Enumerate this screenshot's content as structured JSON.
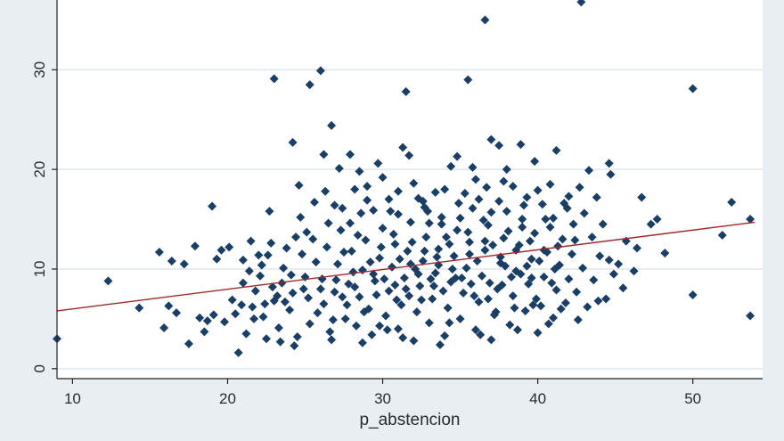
{
  "chart_data": {
    "type": "scatter",
    "xlabel": "p_abstencion",
    "ylabel": "",
    "xlim": [
      9,
      54.5
    ],
    "ylim": [
      -1,
      37
    ],
    "xticks": [
      "10",
      "20",
      "30",
      "40",
      "50"
    ],
    "yticks": [
      "0",
      "10",
      "20",
      "30"
    ],
    "grid": true,
    "legend": "none",
    "colors": {
      "page_bg": "#e8eef2",
      "plot_bg": "#ffffff",
      "gridline": "#dde6ec",
      "point": "#1a3f66",
      "fit_line": "#a02828",
      "axis": "#222222"
    },
    "fit_line": {
      "x": [
        9,
        54
      ],
      "y": [
        5.8,
        14.7
      ]
    },
    "points": [
      [
        9.0,
        3.0
      ],
      [
        12.3,
        8.8
      ],
      [
        14.3,
        6.1
      ],
      [
        15.6,
        11.7
      ],
      [
        15.9,
        4.1
      ],
      [
        16.2,
        6.3
      ],
      [
        16.4,
        10.8
      ],
      [
        16.7,
        5.6
      ],
      [
        17.2,
        10.5
      ],
      [
        17.5,
        2.5
      ],
      [
        17.9,
        12.3
      ],
      [
        18.2,
        5.1
      ],
      [
        18.7,
        4.8
      ],
      [
        19.0,
        16.3
      ],
      [
        19.3,
        11.0
      ],
      [
        19.6,
        11.9
      ],
      [
        20.1,
        12.2
      ],
      [
        20.3,
        6.9
      ],
      [
        20.7,
        1.6
      ],
      [
        21.0,
        10.9
      ],
      [
        21.5,
        12.8
      ],
      [
        22.0,
        11.4
      ],
      [
        22.6,
        11.4
      ],
      [
        22.7,
        15.8
      ],
      [
        23.0,
        29.1
      ],
      [
        23.4,
        2.7
      ],
      [
        23.8,
        12.1
      ],
      [
        24.2,
        22.7
      ],
      [
        24.6,
        18.4
      ],
      [
        25.3,
        28.5
      ],
      [
        25.6,
        16.7
      ],
      [
        26.0,
        29.9
      ],
      [
        26.2,
        21.5
      ],
      [
        26.7,
        24.4
      ],
      [
        27.2,
        20.1
      ],
      [
        27.4,
        16.1
      ],
      [
        27.9,
        21.5
      ],
      [
        28.2,
        18.0
      ],
      [
        28.6,
        15.6
      ],
      [
        29.0,
        18.3
      ],
      [
        29.4,
        15.9
      ],
      [
        29.7,
        20.6
      ],
      [
        30.5,
        15.8
      ],
      [
        31.0,
        17.8
      ],
      [
        31.3,
        22.2
      ],
      [
        31.5,
        27.8
      ],
      [
        31.7,
        21.4
      ],
      [
        32.3,
        17.1
      ],
      [
        32.7,
        16.2
      ],
      [
        33.4,
        17.7
      ],
      [
        33.8,
        14.5
      ],
      [
        34.4,
        20.3
      ],
      [
        34.8,
        21.3
      ],
      [
        35.5,
        29.0
      ],
      [
        35.8,
        20.2
      ],
      [
        36.2,
        17.0
      ],
      [
        36.6,
        35.0
      ],
      [
        37.0,
        23.0
      ],
      [
        37.5,
        22.4
      ],
      [
        37.8,
        18.8
      ],
      [
        38.4,
        18.3
      ],
      [
        38.9,
        22.5
      ],
      [
        39.3,
        17.2
      ],
      [
        39.8,
        20.8
      ],
      [
        40.3,
        16.5
      ],
      [
        40.8,
        18.5
      ],
      [
        41.2,
        21.9
      ],
      [
        41.7,
        16.6
      ],
      [
        42.3,
        14.5
      ],
      [
        42.7,
        18.2
      ],
      [
        42.8,
        36.8
      ],
      [
        43.3,
        19.9
      ],
      [
        43.8,
        17.2
      ],
      [
        44.6,
        20.6
      ],
      [
        44.2,
        14.5
      ],
      [
        44.7,
        19.5
      ],
      [
        45.2,
        10.5
      ],
      [
        45.7,
        12.8
      ],
      [
        46.2,
        9.8
      ],
      [
        46.7,
        17.2
      ],
      [
        47.3,
        14.5
      ],
      [
        47.7,
        15.0
      ],
      [
        48.2,
        11.6
      ],
      [
        50.0,
        28.1
      ],
      [
        50.0,
        7.4
      ],
      [
        51.9,
        13.4
      ],
      [
        52.5,
        16.7
      ],
      [
        53.7,
        15.0
      ],
      [
        53.7,
        5.3
      ],
      [
        21.2,
        3.5
      ],
      [
        21.8,
        7.8
      ],
      [
        22.3,
        5.2
      ],
      [
        22.9,
        8.2
      ],
      [
        23.3,
        4.1
      ],
      [
        23.7,
        6.7
      ],
      [
        24.1,
        9.4
      ],
      [
        24.5,
        3.2
      ],
      [
        24.8,
        11.5
      ],
      [
        25.2,
        7.1
      ],
      [
        25.5,
        13.0
      ],
      [
        25.8,
        5.6
      ],
      [
        26.1,
        9.0
      ],
      [
        26.4,
        12.2
      ],
      [
        26.6,
        3.7
      ],
      [
        26.9,
        7.7
      ],
      [
        27.1,
        10.5
      ],
      [
        27.3,
        13.9
      ],
      [
        27.6,
        5.0
      ],
      [
        27.8,
        8.5
      ],
      [
        28.0,
        11.8
      ],
      [
        28.3,
        4.3
      ],
      [
        28.5,
        7.2
      ],
      [
        28.7,
        9.9
      ],
      [
        28.9,
        12.9
      ],
      [
        29.1,
        6.0
      ],
      [
        29.3,
        3.4
      ],
      [
        29.5,
        8.8
      ],
      [
        29.8,
        11.1
      ],
      [
        30.0,
        14.1
      ],
      [
        30.2,
        5.3
      ],
      [
        30.4,
        7.8
      ],
      [
        30.6,
        10.2
      ],
      [
        30.8,
        12.5
      ],
      [
        31.0,
        4.0
      ],
      [
        31.2,
        6.4
      ],
      [
        31.4,
        9.1
      ],
      [
        31.6,
        11.8
      ],
      [
        31.8,
        14.7
      ],
      [
        32.0,
        2.8
      ],
      [
        32.2,
        5.7
      ],
      [
        32.4,
        8.3
      ],
      [
        32.6,
        10.8
      ],
      [
        32.8,
        13.2
      ],
      [
        33.0,
        4.6
      ],
      [
        33.2,
        7.0
      ],
      [
        33.4,
        9.6
      ],
      [
        33.6,
        12.0
      ],
      [
        33.8,
        15.2
      ],
      [
        34.0,
        3.3
      ],
      [
        34.2,
        6.1
      ],
      [
        34.4,
        8.7
      ],
      [
        34.6,
        11.3
      ],
      [
        34.8,
        13.9
      ],
      [
        35.0,
        5.0
      ],
      [
        35.2,
        7.6
      ],
      [
        35.4,
        10.1
      ],
      [
        35.6,
        12.7
      ],
      [
        35.8,
        16.1
      ],
      [
        36.0,
        3.9
      ],
      [
        36.2,
        6.7
      ],
      [
        36.4,
        9.3
      ],
      [
        36.6,
        11.9
      ],
      [
        36.8,
        14.4
      ],
      [
        37.0,
        2.9
      ],
      [
        37.2,
        5.4
      ],
      [
        37.4,
        8.0
      ],
      [
        37.6,
        10.6
      ],
      [
        37.8,
        13.1
      ],
      [
        38.0,
        15.8
      ],
      [
        38.2,
        4.4
      ],
      [
        38.4,
        7.3
      ],
      [
        38.6,
        9.8
      ],
      [
        38.8,
        12.4
      ],
      [
        39.0,
        15.0
      ],
      [
        39.2,
        5.8
      ],
      [
        39.4,
        8.5
      ],
      [
        39.6,
        11.0
      ],
      [
        39.8,
        13.6
      ],
      [
        40.0,
        3.6
      ],
      [
        40.2,
        6.3
      ],
      [
        40.4,
        9.2
      ],
      [
        40.6,
        11.7
      ],
      [
        40.8,
        14.2
      ],
      [
        41.0,
        5.1
      ],
      [
        41.2,
        7.9
      ],
      [
        41.4,
        10.4
      ],
      [
        41.6,
        13.0
      ],
      [
        41.8,
        6.6
      ],
      [
        42.0,
        9.0
      ],
      [
        42.2,
        11.5
      ],
      [
        42.5,
        7.7
      ],
      [
        42.9,
        10.1
      ],
      [
        43.2,
        6.2
      ],
      [
        43.6,
        8.9
      ],
      [
        44.0,
        11.3
      ],
      [
        44.4,
        7.0
      ],
      [
        44.9,
        9.5
      ],
      [
        20.5,
        5.5
      ],
      [
        21.0,
        8.6
      ],
      [
        21.6,
        6.2
      ],
      [
        22.1,
        9.3
      ],
      [
        22.5,
        3.0
      ],
      [
        23.0,
        6.8
      ],
      [
        23.6,
        10.1
      ],
      [
        24.0,
        5.9
      ],
      [
        24.4,
        13.2
      ],
      [
        24.9,
        8.0
      ],
      [
        25.3,
        4.5
      ],
      [
        25.7,
        10.7
      ],
      [
        26.2,
        6.5
      ],
      [
        26.5,
        14.6
      ],
      [
        26.8,
        4.9
      ],
      [
        27.0,
        8.9
      ],
      [
        27.5,
        11.7
      ],
      [
        27.7,
        6.4
      ],
      [
        28.1,
        9.7
      ],
      [
        28.4,
        13.4
      ],
      [
        28.8,
        5.7
      ],
      [
        29.2,
        10.7
      ],
      [
        29.6,
        7.4
      ],
      [
        29.9,
        12.2
      ],
      [
        30.1,
        9.0
      ],
      [
        30.3,
        3.9
      ],
      [
        30.7,
        13.5
      ],
      [
        30.9,
        6.9
      ],
      [
        31.1,
        11.0
      ],
      [
        31.5,
        8.0
      ],
      [
        31.9,
        12.7
      ],
      [
        32.1,
        10.0
      ],
      [
        32.5,
        6.9
      ],
      [
        32.9,
        15.8
      ],
      [
        33.1,
        9.0
      ],
      [
        33.5,
        11.2
      ],
      [
        33.9,
        7.8
      ],
      [
        34.1,
        13.2
      ],
      [
        34.5,
        10.0
      ],
      [
        34.9,
        16.6
      ],
      [
        35.1,
        9.1
      ],
      [
        35.5,
        13.7
      ],
      [
        35.9,
        7.3
      ],
      [
        36.1,
        10.8
      ],
      [
        36.5,
        14.9
      ],
      [
        36.9,
        8.6
      ],
      [
        37.1,
        12.4
      ],
      [
        37.5,
        16.8
      ],
      [
        37.9,
        10.3
      ],
      [
        38.1,
        13.8
      ],
      [
        38.5,
        6.1
      ],
      [
        38.9,
        9.5
      ],
      [
        39.1,
        16.4
      ],
      [
        39.5,
        12.8
      ],
      [
        39.9,
        7.0
      ],
      [
        40.1,
        10.8
      ],
      [
        40.5,
        15.0
      ],
      [
        40.9,
        8.6
      ],
      [
        41.3,
        12.3
      ],
      [
        41.9,
        16.1
      ],
      [
        42.4,
        12.9
      ],
      [
        43.0,
        15.6
      ],
      [
        43.5,
        13.2
      ],
      [
        21.4,
        9.8
      ],
      [
        22.8,
        12.6
      ],
      [
        24.7,
        15.2
      ],
      [
        26.3,
        17.8
      ],
      [
        27.9,
        14.6
      ],
      [
        29.0,
        16.9
      ],
      [
        30.0,
        19.2
      ],
      [
        31.0,
        15.5
      ],
      [
        32.0,
        18.6
      ],
      [
        33.0,
        14.6
      ],
      [
        34.0,
        18.0
      ],
      [
        35.0,
        15.1
      ],
      [
        36.0,
        19.0
      ],
      [
        37.0,
        15.7
      ],
      [
        38.0,
        20.0
      ],
      [
        39.0,
        14.2
      ],
      [
        40.0,
        17.9
      ],
      [
        41.0,
        15.1
      ],
      [
        42.0,
        17.3
      ],
      [
        35.3,
        17.6
      ],
      [
        36.7,
        18.2
      ],
      [
        32.6,
        16.8
      ],
      [
        30.4,
        17.0
      ],
      [
        28.5,
        19.8
      ],
      [
        26.9,
        16.4
      ],
      [
        25.1,
        13.7
      ],
      [
        23.5,
        8.6
      ],
      [
        22.2,
        10.4
      ],
      [
        20.9,
        6.4
      ],
      [
        19.8,
        4.7
      ],
      [
        19.1,
        5.4
      ],
      [
        18.5,
        3.7
      ],
      [
        28.7,
        2.6
      ],
      [
        31.3,
        3.1
      ],
      [
        33.7,
        2.4
      ],
      [
        36.3,
        3.4
      ],
      [
        38.7,
        3.9
      ],
      [
        40.7,
        4.5
      ],
      [
        42.6,
        4.9
      ],
      [
        24.3,
        2.3
      ],
      [
        26.7,
        2.9
      ],
      [
        29.8,
        4.3
      ],
      [
        34.3,
        4.6
      ],
      [
        37.3,
        5.7
      ],
      [
        39.7,
        6.4
      ],
      [
        41.5,
        6.0
      ],
      [
        43.9,
        6.8
      ],
      [
        45.5,
        8.1
      ],
      [
        46.4,
        12.1
      ],
      [
        44.6,
        10.9
      ],
      [
        30.8,
        8.4
      ],
      [
        31.7,
        7.3
      ],
      [
        32.3,
        9.5
      ],
      [
        33.3,
        8.3
      ],
      [
        34.7,
        9.1
      ],
      [
        35.7,
        8.5
      ],
      [
        36.8,
        7.0
      ],
      [
        37.7,
        8.4
      ],
      [
        38.3,
        9.2
      ],
      [
        39.3,
        10.3
      ],
      [
        29.4,
        9.5
      ],
      [
        28.2,
        8.2
      ],
      [
        27.4,
        7.2
      ],
      [
        26.0,
        8.0
      ],
      [
        25.0,
        9.2
      ],
      [
        24.2,
        7.6
      ],
      [
        23.2,
        7.3
      ],
      [
        22.4,
        6.5
      ],
      [
        21.7,
        5.0
      ],
      [
        31.8,
        10.5
      ],
      [
        32.7,
        11.8
      ],
      [
        33.6,
        10.4
      ],
      [
        34.3,
        12.5
      ],
      [
        35.6,
        11.5
      ],
      [
        36.6,
        12.8
      ],
      [
        37.6,
        11.2
      ],
      [
        38.6,
        11.9
      ],
      [
        39.6,
        9.1
      ],
      [
        40.4,
        11.9
      ],
      [
        41.1,
        10.0
      ]
    ]
  }
}
